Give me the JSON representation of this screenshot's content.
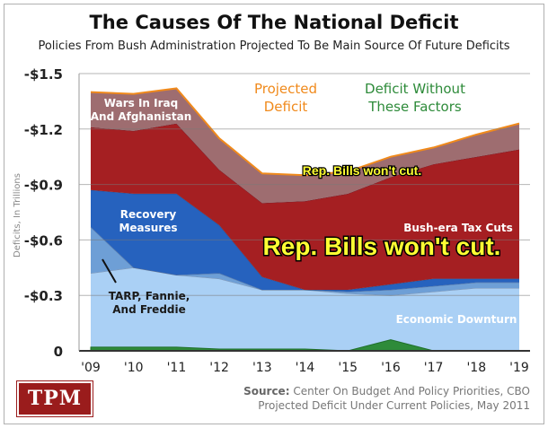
{
  "header": {
    "title": "The Causes Of The National Deficit",
    "subtitle": "Policies From Bush Administration Projected To Be Main Source Of Future Deficits"
  },
  "legend": {
    "projected": "Projected\nDeficit",
    "without": "Deficit Without\nThese Factors",
    "projected_color": "#f08a1c",
    "without_color": "#2e8b3a"
  },
  "annotations": {
    "large": "Rep. Bills won't cut.",
    "small": "Rep. Bills won't cut."
  },
  "footer": {
    "logo": "TPM",
    "source_label": "Source:",
    "source_rest": "Center On Budget And Policy Priorities, CBO",
    "source_line2": "Projected Deficit Under Current Policies, May 2011"
  },
  "chart_data": {
    "type": "area",
    "stacked": true,
    "title": "The Causes Of The National Deficit",
    "subtitle": "Policies From Bush Administration Projected To Be Main Source Of Future Deficits",
    "ylabel": "Deficits, In Trillions",
    "xlabel": "",
    "x": [
      "'09",
      "'10",
      "'11",
      "'12",
      "'13",
      "'14",
      "'15",
      "'16",
      "'17",
      "'18",
      "'19"
    ],
    "yticks": [
      "-$1.5",
      "-$1.2",
      "-$0.9",
      "-$0.6",
      "-$0.3",
      "0"
    ],
    "ylim": [
      0,
      1.5
    ],
    "grid": true,
    "series": [
      {
        "name": "Economic Downturn",
        "color": "#aad0f5",
        "values": [
          0.42,
          0.45,
          0.41,
          0.39,
          0.33,
          0.33,
          0.31,
          0.3,
          0.32,
          0.34,
          0.34
        ]
      },
      {
        "name": "TARP, Fannie, And Freddie",
        "color": "#6e9fd6",
        "values": [
          0.25,
          0.0,
          0.0,
          0.03,
          0.0,
          0.0,
          0.01,
          0.03,
          0.03,
          0.03,
          0.03
        ]
      },
      {
        "name": "Recovery Measures",
        "color": "#2662be",
        "values": [
          0.2,
          0.4,
          0.44,
          0.26,
          0.07,
          0.0,
          0.01,
          0.03,
          0.04,
          0.02,
          0.02
        ]
      },
      {
        "name": "Bush-era Tax Cuts",
        "color": "#a51f22",
        "values": [
          0.34,
          0.34,
          0.38,
          0.3,
          0.4,
          0.48,
          0.52,
          0.58,
          0.62,
          0.66,
          0.7
        ]
      },
      {
        "name": "Wars In Iraq And Afghanistan",
        "color": "#9e6d70",
        "values": [
          0.19,
          0.2,
          0.19,
          0.17,
          0.16,
          0.14,
          0.12,
          0.11,
          0.09,
          0.12,
          0.14
        ]
      }
    ],
    "without_these_factors": [
      0.02,
      0.02,
      0.02,
      0.01,
      0.01,
      0.01,
      0.0,
      0.06,
      0.0,
      0.0,
      0.0
    ]
  }
}
